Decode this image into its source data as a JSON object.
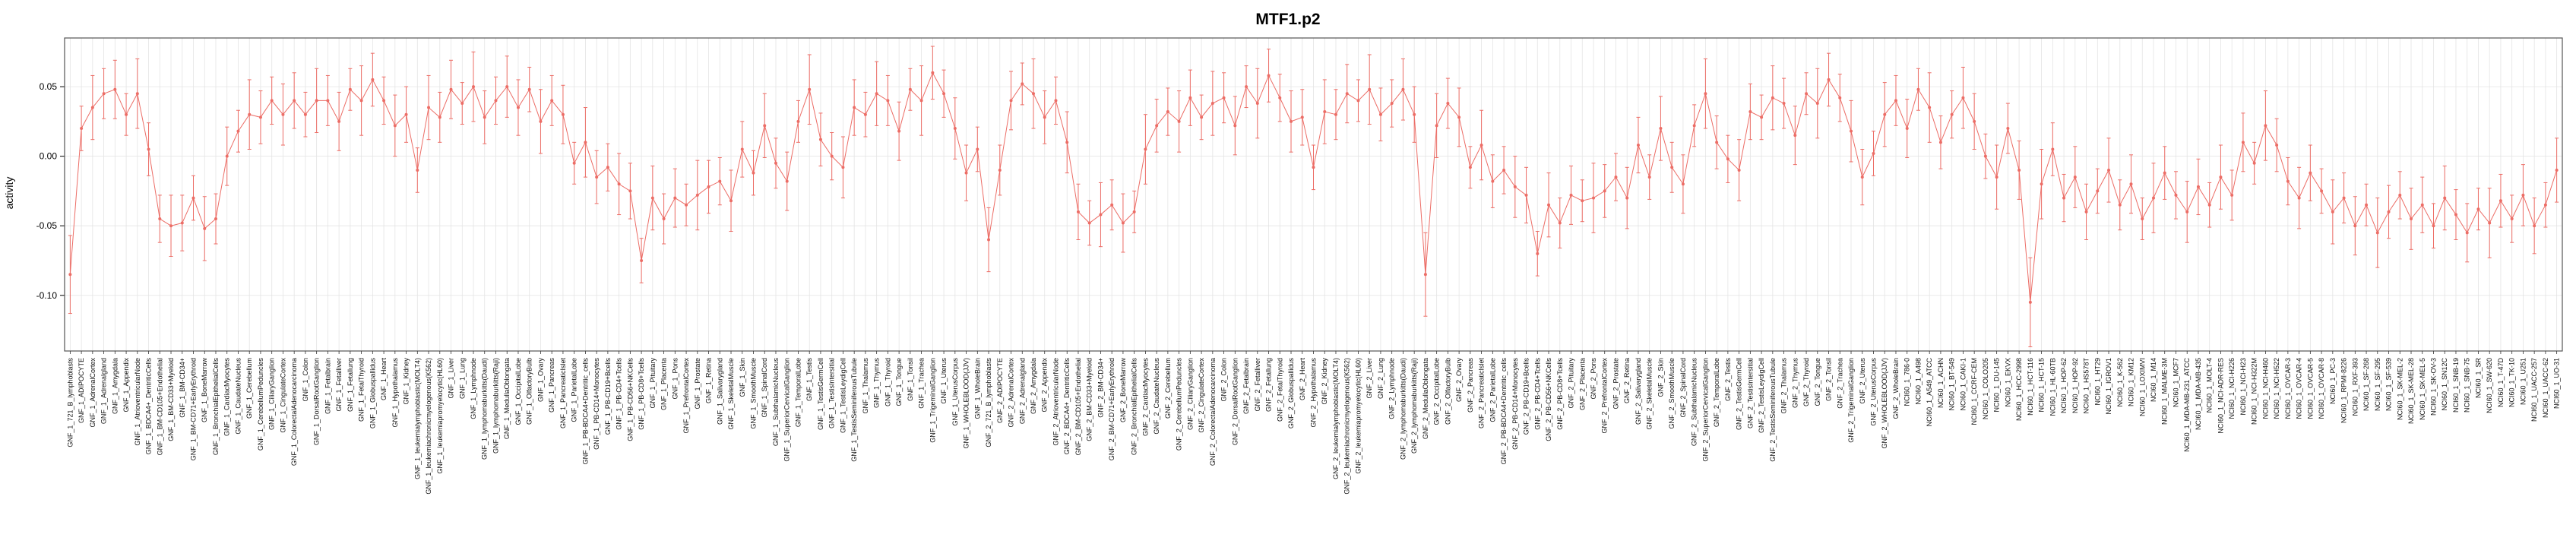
{
  "chart_data": {
    "type": "line",
    "title": "MTF1.p2",
    "xlabel": "",
    "ylabel": "activity",
    "ylim": [
      -0.14,
      0.085
    ],
    "yticks": [
      0.05,
      0.0,
      -0.05,
      -0.1
    ],
    "ytick_labels": [
      "0.05",
      "0.00",
      "-0.05",
      "-0.10"
    ],
    "legend": "none",
    "grid": "vertical-per-category",
    "series_color": "#ec6d66",
    "grid_color": "#e4e4e4",
    "axis_color": "#555555",
    "point_style": "filled-circle-with-error-bars",
    "categories": [
      "GNF_1_721_B_lymphoblasts",
      "GNF_1_ADIPOCYTE",
      "GNF_1_AdrenalCortex",
      "GNF_1_Adrenalgland",
      "GNF_1_Amygdala",
      "GNF_1_Appendix",
      "GNF_1_AtrioventricularNode",
      "GNF_1_BDCA4+_DentriticCells",
      "GNF_1_BM-CD105+Endothelial",
      "GNF_1_BM-CD33+Myeloid",
      "GNF_1_BM-CD34+",
      "GNF_1_BM-CD71+EarlyErythroid",
      "GNF_1_BoneMarrow",
      "GNF_1_BronchialEpithelialCells",
      "GNF_1_CardiacMyocytes",
      "GNF_1_CaudateNucleus",
      "GNF_1_Cerebellum",
      "GNF_1_CerebellumPeduncles",
      "GNF_1_CiliaryGanglion",
      "GNF_1_CingulateCortex",
      "GNF_1_ColorectalAdenocarcinoma",
      "GNF_1_Colon",
      "GNF_1_DorsalRootGanglion",
      "GNF_1_Fetalbrain",
      "GNF_1_Fetalliver",
      "GNF_1_Fetallung",
      "GNF_1_FetalThyroid",
      "GNF_1_Globuspallidus",
      "GNF_1_Heart",
      "GNF_1_Hypothalamus",
      "GNF_1_Kidney",
      "GNF_1_leukemialymphoblastic(MOLT4)",
      "GNF_1_leukemiachronicmyelogenous(K562)",
      "GNF_1_leukemiapromyelocytic(HL60)",
      "GNF_1_Liver",
      "GNF_1_Lung",
      "GNF_1_Lymphnode",
      "GNF_1_lymphomaburkitts(Daudi)",
      "GNF_1_lymphomaburkitts(Raji)",
      "GNF_1_MedullaOblongata",
      "GNF_1_OccipitalLobe",
      "GNF_1_OlfactoryBulb",
      "GNF_1_Ovary",
      "GNF_1_Pancreas",
      "GNF_1_PancreaticIslet",
      "GNF_1_ParietalLobe",
      "GNF_1_PB-BDCA4+Dentritic_cells",
      "GNF_1_PB-CD14+Monocytes",
      "GNF_1_PB-CD19+Bcells",
      "GNF_1_PB-CD4+Tcells",
      "GNF_1_PB-CD56+NKCells",
      "GNF_1_PB-CD8+Tcells",
      "GNF_1_Pituitary",
      "GNF_1_Placenta",
      "GNF_1_Pons",
      "GNF_1_PrefrontalCortex",
      "GNF_1_Prostate",
      "GNF_1_Retina",
      "GNF_1_Salivarygland",
      "GNF_1_SkeletalMuscle",
      "GNF_1_Skin",
      "GNF_1_SmoothMuscle",
      "GNF_1_SpinalCord",
      "GNF_1_SubthalamicNucleus",
      "GNF_1_SuperiorCervicalGanglion",
      "GNF_1_TemporalLobe",
      "GNF_1_Testis",
      "GNF_1_TestisGermCell",
      "GNF_1_TestisIntersitial",
      "GNF_1_TestisLeydigCell",
      "GNF_1_TestisSeminiferousTubule",
      "GNF_1_Thalamus",
      "GNF_1_Thymus",
      "GNF_1_Thyroid",
      "GNF_1_Tongue",
      "GNF_1_Tonsil",
      "GNF_1_Trachea",
      "GNF_1_TrigeminalGanglion",
      "GNF_1_Uterus",
      "GNF_1_UterusCorpus",
      "GNF_1_WHOLEBLOOD(JJV)",
      "GNF_1_WholeBrain",
      "GNF_2_721_B_lymphoblasts",
      "GNF_2_ADIPOCYTE",
      "GNF_2_AdrenalCortex",
      "GNF_2_Adrenalgland",
      "GNF_2_Amygdala",
      "GNF_2_Appendix",
      "GNF_2_AtrioventricularNode",
      "GNF_2_BDCA4+_DentriticCells",
      "GNF_2_BM-CD105+Endothelial",
      "GNF_2_BM-CD33+Myeloid",
      "GNF_2_BM-CD34+",
      "GNF_2_BM-CD71+EarlyErythroid",
      "GNF_2_BoneMarrow",
      "GNF_2_BronchialEpithelialCells",
      "GNF_2_CardiacMyocytes",
      "GNF_2_CaudateNucleus",
      "GNF_2_Cerebellum",
      "GNF_2_CerebellumPeduncles",
      "GNF_2_CiliaryGanglion",
      "GNF_2_CingulateCortex",
      "GNF_2_ColorectalAdenocarcinoma",
      "GNF_2_Colon",
      "GNF_2_DorsalRootGanglion",
      "GNF_2_Fetalbrain",
      "GNF_2_Fetalliver",
      "GNF_2_Fetallung",
      "GNF_2_FetalThyroid",
      "GNF_2_Globuspallidus",
      "GNF_2_Heart",
      "GNF_2_Hypothalamus",
      "GNF_2_Kidney",
      "GNF_2_leukemialymphoblastic(MOLT4)",
      "GNF_2_leukemiachronicmyelogenous(K562)",
      "GNF_2_leukemiapromyelocytic(HL60)",
      "GNF_2_Liver",
      "GNF_2_Lung",
      "GNF_2_Lymphnode",
      "GNF_2_lymphomaburkitts(Daudi)",
      "GNF_2_lymphomaburkitts(Raji)",
      "GNF_2_MedullaOblongata",
      "GNF_2_OccipitalLobe",
      "GNF_2_OlfactoryBulb",
      "GNF_2_Ovary",
      "GNF_2_Pancreas",
      "GNF_2_PancreaticIslet",
      "GNF_2_ParietalLobe",
      "GNF_2_PB-BDCA4+Dentritic_cells",
      "GNF_2_PB-CD14+Monocytes",
      "GNF_2_PB-CD19+Bcells",
      "GNF_2_PB-CD4+Tcells",
      "GNF_2_PB-CD56+NKCells",
      "GNF_2_PB-CD8+Tcells",
      "GNF_2_Pituitary",
      "GNF_2_Placenta",
      "GNF_2_Pons",
      "GNF_2_PrefrontalCortex",
      "GNF_2_Prostate",
      "GNF_2_Retina",
      "GNF_2_Salivarygland",
      "GNF_2_SkeletalMuscle",
      "GNF_2_Skin",
      "GNF_2_SmoothMuscle",
      "GNF_2_SpinalCord",
      "GNF_2_SubthalamicNucleus",
      "GNF_2_SuperiorCervicalGanglion",
      "GNF_2_TemporalLobe",
      "GNF_2_Testis",
      "GNF_2_TestisGermCell",
      "GNF_2_TestisIntersitial",
      "GNF_2_TestisLeydigCell",
      "GNF_2_TestisSeminiferousTubule",
      "GNF_2_Thalamus",
      "GNF_2_Thymus",
      "GNF_2_Thyroid",
      "GNF_2_Tongue",
      "GNF_2_Tonsil",
      "GNF_2_Trachea",
      "GNF_2_TrigeminalGanglion",
      "GNF_2_Uterus",
      "GNF_2_UterusCorpus",
      "GNF_2_WHOLEBLOOD(JJV)",
      "GNF_2_WholeBrain",
      "NCI60_1_786-0",
      "NCI60_1_A498",
      "NCI60_1_A549_ATCC",
      "NCI60_1_ACHN",
      "NCI60_1_BT-549",
      "NCI60_1_CAKI-1",
      "NCI60_1_CCRF-CEM",
      "NCI60_1_COLO205",
      "NCI60_1_DU-145",
      "NCI60_1_EKVX",
      "NCI60_1_HCC-2998",
      "NCI60_1_HCT-116",
      "NCI60_1_HCT-15",
      "NCI60_1_HL-60TB",
      "NCI60_1_HOP-62",
      "NCI60_1_HOP-92",
      "NCI60_1_HS578T",
      "NCI60_1_HT29",
      "NCI60_1_IGROV1",
      "NCI60_1_K-562",
      "NCI60_1_KM12",
      "NCI60_1_LOXIMVI",
      "NCI60_1_M14",
      "NCI60_1_MALME-3M",
      "NCI60_1_MCF7",
      "NCI60_1_MDA-MB-231_ATCC",
      "NCI60_1_MDA-MB-435",
      "NCI60_1_MOLT-4",
      "NCI60_1_NCI-ADR-RES",
      "NCI60_1_NCI-H226",
      "NCI60_1_NCI-H23",
      "NCI60_1_NCI-H322M",
      "NCI60_1_NCI-H460",
      "NCI60_1_NCI-H522",
      "NCI60_1_OVCAR-3",
      "NCI60_1_OVCAR-4",
      "NCI60_1_OVCAR-5",
      "NCI60_1_OVCAR-8",
      "NCI60_1_PC-3",
      "NCI60_1_RPMI-8226",
      "NCI60_1_RXF-393",
      "NCI60_1_SF-268",
      "NCI60_1_SF-295",
      "NCI60_1_SF-539",
      "NCI60_1_SK-MEL-2",
      "NCI60_1_SK-MEL-28",
      "NCI60_1_SK-MEL-5",
      "NCI60_1_SK-OV-3",
      "NCI60_1_SN12C",
      "NCI60_1_SNB-19",
      "NCI60_1_SNB-75",
      "NCI60_1_SR",
      "NCI60_1_SW-620",
      "NCI60_1_T-47D",
      "NCI60_1_TK-10",
      "NCI60_1_U251",
      "NCI60_1_UACC-257",
      "NCI60_1_UACC-62",
      "NCI60_1_UO-31"
    ],
    "values": [
      -0.085,
      0.02,
      0.035,
      0.045,
      0.048,
      0.03,
      0.045,
      0.005,
      -0.045,
      -0.05,
      -0.048,
      -0.03,
      -0.052,
      -0.045,
      0.0,
      0.018,
      0.03,
      0.028,
      0.04,
      0.03,
      0.04,
      0.03,
      0.04,
      0.04,
      0.025,
      0.048,
      0.04,
      0.055,
      0.04,
      0.022,
      0.03,
      -0.01,
      0.035,
      0.028,
      0.048,
      0.038,
      0.05,
      0.028,
      0.04,
      0.05,
      0.035,
      0.048,
      0.025,
      0.04,
      0.03,
      -0.005,
      0.01,
      -0.015,
      -0.008,
      -0.02,
      -0.025,
      -0.075,
      -0.03,
      -0.045,
      -0.03,
      -0.035,
      -0.028,
      -0.022,
      -0.018,
      -0.032,
      0.005,
      -0.012,
      0.022,
      -0.005,
      -0.018,
      0.025,
      0.048,
      0.012,
      0.0,
      -0.008,
      0.035,
      0.03,
      0.045,
      0.04,
      0.018,
      0.048,
      0.04,
      0.06,
      0.045,
      0.02,
      -0.012,
      0.005,
      -0.06,
      -0.01,
      0.04,
      0.052,
      0.045,
      0.028,
      0.04,
      0.01,
      -0.04,
      -0.048,
      -0.042,
      -0.035,
      -0.048,
      -0.04,
      0.005,
      0.022,
      0.032,
      0.025,
      0.042,
      0.028,
      0.038,
      0.042,
      0.022,
      0.05,
      0.038,
      0.058,
      0.042,
      0.025,
      0.028,
      -0.008,
      0.032,
      0.03,
      0.045,
      0.04,
      0.048,
      0.03,
      0.038,
      0.048,
      0.03,
      -0.085,
      0.022,
      0.038,
      0.028,
      -0.008,
      0.008,
      -0.018,
      -0.01,
      -0.022,
      -0.028,
      -0.07,
      -0.035,
      -0.048,
      -0.028,
      -0.032,
      -0.03,
      -0.025,
      -0.015,
      -0.03,
      0.008,
      -0.015,
      0.02,
      -0.008,
      -0.02,
      0.022,
      0.045,
      0.01,
      -0.002,
      -0.01,
      0.032,
      0.028,
      0.042,
      0.038,
      0.015,
      0.045,
      0.038,
      0.055,
      0.042,
      0.018,
      -0.015,
      0.002,
      0.03,
      0.04,
      0.02,
      0.048,
      0.035,
      0.01,
      0.03,
      0.042,
      0.025,
      0.0,
      -0.015,
      0.02,
      -0.01,
      -0.105,
      -0.02,
      0.005,
      -0.03,
      -0.015,
      -0.04,
      -0.025,
      -0.01,
      -0.035,
      -0.02,
      -0.045,
      -0.03,
      -0.012,
      -0.028,
      -0.04,
      -0.022,
      -0.035,
      -0.015,
      -0.028,
      0.01,
      -0.005,
      0.022,
      0.008,
      -0.018,
      -0.03,
      -0.012,
      -0.025,
      -0.04,
      -0.03,
      -0.05,
      -0.035,
      -0.055,
      -0.04,
      -0.028,
      -0.045,
      -0.035,
      -0.05,
      -0.03,
      -0.042,
      -0.055,
      -0.038,
      -0.048,
      -0.032,
      -0.045,
      -0.028,
      -0.05,
      -0.035,
      -0.01
    ],
    "errors": [
      0.028,
      0.016,
      0.023,
      0.018,
      0.021,
      0.015,
      0.025,
      0.019,
      0.017,
      0.022,
      0.02,
      0.016,
      0.023,
      0.018,
      0.021,
      0.015,
      0.025,
      0.019,
      0.017,
      0.022,
      0.02,
      0.016,
      0.023,
      0.018,
      0.021,
      0.015,
      0.025,
      0.019,
      0.017,
      0.022,
      0.02,
      0.016,
      0.023,
      0.018,
      0.021,
      0.015,
      0.025,
      0.019,
      0.017,
      0.022,
      0.02,
      0.016,
      0.023,
      0.018,
      0.021,
      0.015,
      0.025,
      0.019,
      0.017,
      0.022,
      0.02,
      0.016,
      0.023,
      0.018,
      0.021,
      0.015,
      0.025,
      0.019,
      0.017,
      0.022,
      0.02,
      0.016,
      0.023,
      0.018,
      0.021,
      0.015,
      0.025,
      0.019,
      0.017,
      0.022,
      0.02,
      0.016,
      0.023,
      0.018,
      0.021,
      0.015,
      0.025,
      0.019,
      0.017,
      0.022,
      0.02,
      0.016,
      0.023,
      0.018,
      0.021,
      0.015,
      0.025,
      0.019,
      0.017,
      0.022,
      0.02,
      0.016,
      0.023,
      0.018,
      0.021,
      0.015,
      0.025,
      0.019,
      0.017,
      0.022,
      0.02,
      0.016,
      0.023,
      0.018,
      0.021,
      0.015,
      0.025,
      0.019,
      0.017,
      0.022,
      0.02,
      0.016,
      0.023,
      0.018,
      0.021,
      0.015,
      0.025,
      0.019,
      0.017,
      0.022,
      0.02,
      0.03,
      0.023,
      0.018,
      0.021,
      0.015,
      0.025,
      0.019,
      0.017,
      0.022,
      0.02,
      0.016,
      0.023,
      0.018,
      0.021,
      0.015,
      0.025,
      0.019,
      0.017,
      0.022,
      0.02,
      0.016,
      0.023,
      0.018,
      0.021,
      0.015,
      0.025,
      0.019,
      0.017,
      0.022,
      0.02,
      0.016,
      0.023,
      0.018,
      0.021,
      0.015,
      0.025,
      0.019,
      0.017,
      0.022,
      0.02,
      0.016,
      0.023,
      0.018,
      0.021,
      0.015,
      0.025,
      0.019,
      0.017,
      0.022,
      0.02,
      0.016,
      0.023,
      0.018,
      0.021,
      0.032,
      0.025,
      0.019,
      0.017,
      0.022,
      0.02,
      0.016,
      0.023,
      0.018,
      0.021,
      0.015,
      0.025,
      0.019,
      0.017,
      0.022,
      0.02,
      0.016,
      0.023,
      0.018,
      0.021,
      0.015,
      0.025,
      0.019,
      0.017,
      0.022,
      0.02,
      0.016,
      0.023,
      0.018,
      0.021,
      0.015,
      0.025,
      0.019,
      0.017,
      0.022,
      0.02,
      0.016,
      0.023,
      0.018,
      0.021,
      0.015,
      0.025,
      0.019,
      0.017,
      0.022,
      0.02,
      0.016,
      0.023
    ]
  }
}
